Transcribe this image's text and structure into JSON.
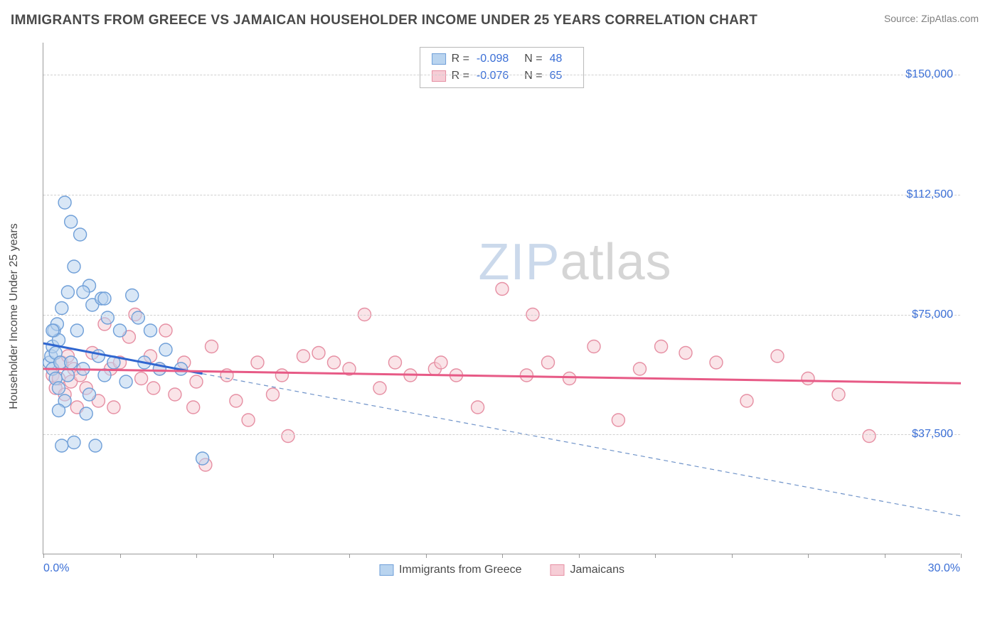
{
  "header": {
    "title": "IMMIGRANTS FROM GREECE VS JAMAICAN HOUSEHOLDER INCOME UNDER 25 YEARS CORRELATION CHART",
    "source": "Source: ZipAtlas.com"
  },
  "chart": {
    "type": "scatter",
    "yaxis_label": "Householder Income Under 25 years",
    "xlim": [
      0,
      30
    ],
    "ylim": [
      0,
      160000
    ],
    "xrange_labels": [
      "0.0%",
      "30.0%"
    ],
    "ytick_values": [
      37500,
      75000,
      112500,
      150000
    ],
    "ytick_labels": [
      "$37,500",
      "$75,000",
      "$112,500",
      "$150,000"
    ],
    "xtick_values": [
      0,
      2.5,
      5,
      7.5,
      10,
      12.5,
      15,
      17.5,
      20,
      22.5,
      25,
      27.5,
      30
    ],
    "background_color": "#ffffff",
    "grid_color": "#d0d0d0",
    "axis_color": "#9a9a9a",
    "tick_label_color": "#3b6fd6",
    "marker_radius": 9,
    "marker_stroke_width": 1.4,
    "title_fontsize": 19,
    "label_fontsize": 16,
    "series": [
      {
        "name": "Immigrants from Greece",
        "fill_color": "#b9d4ef",
        "stroke_color": "#6f9fd8",
        "fill_opacity": 0.55,
        "R": "-0.098",
        "N": "48",
        "trend": {
          "x1": 0,
          "y1": 66000,
          "x2": 5.2,
          "y2": 56500,
          "color": "#2f66d0",
          "width": 3,
          "dash": "none"
        },
        "trend_ext": {
          "x1": 5.2,
          "y1": 56500,
          "x2": 30,
          "y2": 12000,
          "color": "#6f93c9",
          "width": 1.2,
          "dash": "6 5"
        },
        "points": [
          [
            0.2,
            60000
          ],
          [
            0.25,
            62000
          ],
          [
            0.3,
            58000
          ],
          [
            0.3,
            65000
          ],
          [
            0.35,
            70000
          ],
          [
            0.4,
            55000
          ],
          [
            0.4,
            63000
          ],
          [
            0.45,
            72000
          ],
          [
            0.5,
            67000
          ],
          [
            0.5,
            52000
          ],
          [
            0.55,
            60000
          ],
          [
            0.6,
            77000
          ],
          [
            0.7,
            110000
          ],
          [
            0.7,
            48000
          ],
          [
            0.8,
            82000
          ],
          [
            0.8,
            56000
          ],
          [
            0.9,
            104000
          ],
          [
            1.0,
            90000
          ],
          [
            1.1,
            70000
          ],
          [
            1.2,
            100000
          ],
          [
            1.3,
            58000
          ],
          [
            1.4,
            44000
          ],
          [
            1.5,
            84000
          ],
          [
            1.5,
            50000
          ],
          [
            1.6,
            78000
          ],
          [
            1.7,
            34000
          ],
          [
            1.8,
            62000
          ],
          [
            1.9,
            80000
          ],
          [
            2.0,
            56000
          ],
          [
            2.1,
            74000
          ],
          [
            2.3,
            60000
          ],
          [
            2.5,
            70000
          ],
          [
            2.7,
            54000
          ],
          [
            2.9,
            81000
          ],
          [
            3.1,
            74000
          ],
          [
            3.3,
            60000
          ],
          [
            3.5,
            70000
          ],
          [
            3.8,
            58000
          ],
          [
            4.0,
            64000
          ],
          [
            0.6,
            34000
          ],
          [
            0.5,
            45000
          ],
          [
            1.0,
            35000
          ],
          [
            1.3,
            82000
          ],
          [
            0.9,
            60000
          ],
          [
            0.3,
            70000
          ],
          [
            2.0,
            80000
          ],
          [
            4.5,
            58000
          ],
          [
            5.2,
            30000
          ]
        ]
      },
      {
        "name": "Jamaicans",
        "fill_color": "#f6cdd6",
        "stroke_color": "#e68fa3",
        "fill_opacity": 0.55,
        "R": "-0.076",
        "N": "65",
        "trend": {
          "x1": 0,
          "y1": 58000,
          "x2": 30,
          "y2": 53500,
          "color": "#e75a86",
          "width": 3,
          "dash": "none"
        },
        "points": [
          [
            0.3,
            56000
          ],
          [
            0.4,
            52000
          ],
          [
            0.5,
            55000
          ],
          [
            0.6,
            60000
          ],
          [
            0.7,
            50000
          ],
          [
            0.8,
            62000
          ],
          [
            0.9,
            54000
          ],
          [
            1.0,
            58000
          ],
          [
            1.2,
            56000
          ],
          [
            1.4,
            52000
          ],
          [
            1.6,
            63000
          ],
          [
            1.8,
            48000
          ],
          [
            2.0,
            72000
          ],
          [
            2.2,
            58000
          ],
          [
            2.5,
            60000
          ],
          [
            2.8,
            68000
          ],
          [
            3.0,
            75000
          ],
          [
            3.2,
            55000
          ],
          [
            3.5,
            62000
          ],
          [
            3.8,
            58000
          ],
          [
            4.0,
            70000
          ],
          [
            4.3,
            50000
          ],
          [
            4.6,
            60000
          ],
          [
            5.0,
            54000
          ],
          [
            5.3,
            28000
          ],
          [
            5.5,
            65000
          ],
          [
            6.0,
            56000
          ],
          [
            6.3,
            48000
          ],
          [
            6.7,
            42000
          ],
          [
            7.0,
            60000
          ],
          [
            7.5,
            50000
          ],
          [
            8.0,
            37000
          ],
          [
            8.5,
            62000
          ],
          [
            9.0,
            63000
          ],
          [
            9.5,
            60000
          ],
          [
            10.0,
            58000
          ],
          [
            10.5,
            75000
          ],
          [
            11.0,
            52000
          ],
          [
            11.5,
            60000
          ],
          [
            12.0,
            56000
          ],
          [
            12.8,
            58000
          ],
          [
            13.5,
            56000
          ],
          [
            14.2,
            46000
          ],
          [
            15.0,
            83000
          ],
          [
            15.8,
            56000
          ],
          [
            16.5,
            60000
          ],
          [
            17.2,
            55000
          ],
          [
            18.0,
            65000
          ],
          [
            18.8,
            42000
          ],
          [
            19.5,
            58000
          ],
          [
            20.2,
            65000
          ],
          [
            21.0,
            63000
          ],
          [
            22.0,
            60000
          ],
          [
            23.0,
            48000
          ],
          [
            24.0,
            62000
          ],
          [
            25.0,
            55000
          ],
          [
            27.0,
            37000
          ],
          [
            26.0,
            50000
          ],
          [
            16.0,
            75000
          ],
          [
            13.0,
            60000
          ],
          [
            7.8,
            56000
          ],
          [
            4.9,
            46000
          ],
          [
            3.6,
            52000
          ],
          [
            2.3,
            46000
          ],
          [
            1.1,
            46000
          ]
        ]
      }
    ],
    "watermark": {
      "zip": "ZIP",
      "atlas": "atlas"
    },
    "bottom_legend": [
      {
        "label": "Immigrants from Greece",
        "fill": "#b9d4ef",
        "stroke": "#6f9fd8"
      },
      {
        "label": "Jamaicans",
        "fill": "#f6cdd6",
        "stroke": "#e68fa3"
      }
    ]
  }
}
